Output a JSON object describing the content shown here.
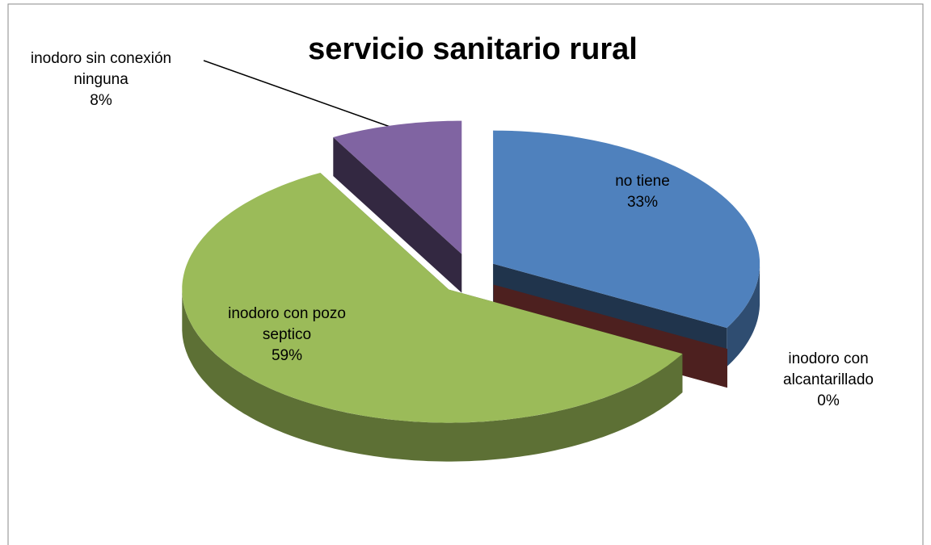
{
  "chart_data": {
    "type": "pie",
    "title": "servicio sanitario rural",
    "categories": [
      "no tiene",
      "inodoro con alcantarillado",
      "inodoro con pozo septico",
      "inodoro sin conexión ninguna"
    ],
    "values": [
      33,
      0,
      59,
      8
    ],
    "value_labels": [
      "33%",
      "0%",
      "59%",
      "8%"
    ],
    "colors": [
      "#4f81bd",
      "#c0504d",
      "#9bbb59",
      "#8064a2"
    ]
  }
}
